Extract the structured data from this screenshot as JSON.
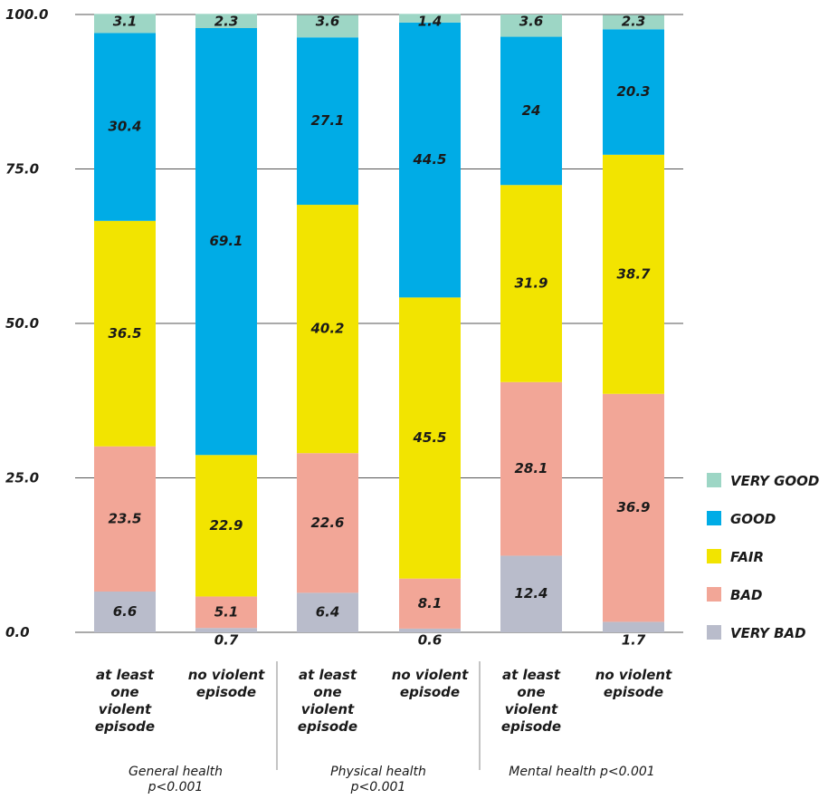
{
  "chart_data": {
    "type": "bar",
    "stacked": true,
    "ylim": [
      0,
      100
    ],
    "yticks": [
      "0.0",
      "25.0",
      "50.0",
      "75.0",
      "100.0"
    ],
    "grid": true,
    "legend_position": "right",
    "categories": [
      [
        "at least",
        "one",
        "violent",
        "episode"
      ],
      [
        "no violent",
        "episode"
      ],
      [
        "at least",
        "one",
        "violent",
        "episode"
      ],
      [
        "no violent",
        "episode"
      ],
      [
        "at least",
        "one",
        "violent",
        "episode"
      ],
      [
        "no violent",
        "episode"
      ]
    ],
    "groups": [
      {
        "lines": [
          "General health",
          "p<0.001"
        ]
      },
      {
        "lines": [
          "Physical health",
          "p<0.001"
        ]
      },
      {
        "lines": [
          "Mental health p<0.001"
        ]
      }
    ],
    "series": [
      {
        "name": "VERY BAD",
        "color": "#b9bccb",
        "values": [
          6.6,
          0.7,
          6.4,
          0.6,
          12.4,
          1.7
        ],
        "labels": [
          "6.6",
          "0.7",
          "6.4",
          "0.6",
          "12.4",
          "1.7"
        ]
      },
      {
        "name": "BAD",
        "color": "#f2a697",
        "values": [
          23.5,
          5.1,
          22.6,
          8.1,
          28.1,
          36.9
        ],
        "labels": [
          "23.5",
          "5.1",
          "22.6",
          "8.1",
          "28.1",
          "36.9"
        ]
      },
      {
        "name": "FAIR",
        "color": "#f2e400",
        "values": [
          36.5,
          22.9,
          40.2,
          45.5,
          31.9,
          38.7
        ],
        "labels": [
          "36.5",
          "22.9",
          "40.2",
          "45.5",
          "31.9",
          "38.7"
        ]
      },
      {
        "name": "GOOD",
        "color": "#00ace6",
        "values": [
          30.4,
          69.1,
          27.1,
          44.5,
          24,
          20.3
        ],
        "labels": [
          "30.4",
          "69.1",
          "27.1",
          "44.5",
          "24",
          "20.3"
        ]
      },
      {
        "name": "VERY GOOD",
        "color": "#9dd6c5",
        "values": [
          3.1,
          2.3,
          3.6,
          1.4,
          3.6,
          2.3
        ],
        "labels": [
          "3.1",
          "2.3",
          "3.6",
          "1.4",
          "3.6",
          "2.3"
        ]
      }
    ],
    "legend_order": [
      "VERY GOOD",
      "GOOD",
      "FAIR",
      "BAD",
      "VERY BAD"
    ]
  }
}
